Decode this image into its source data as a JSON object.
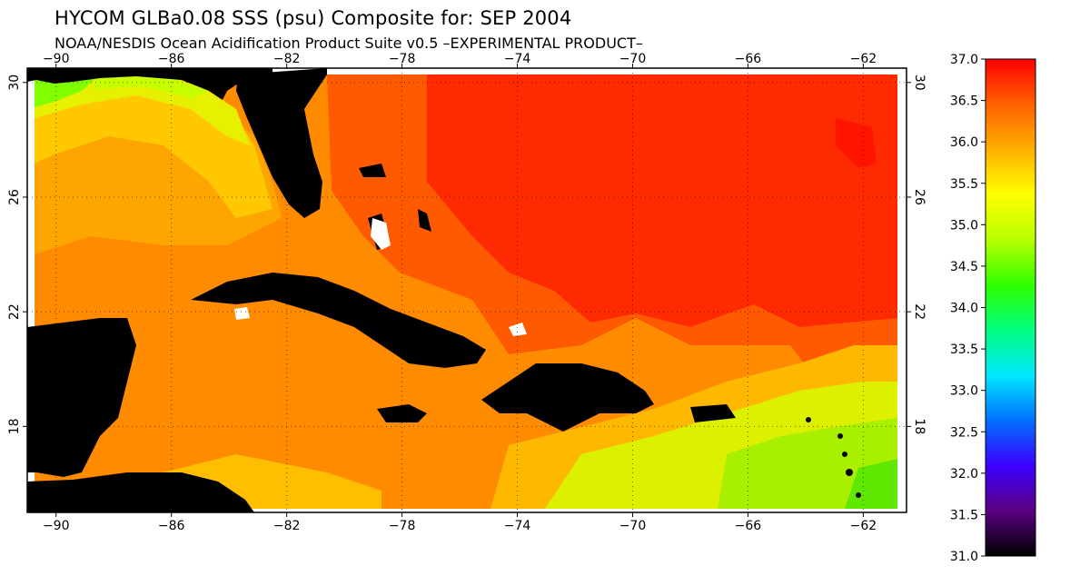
{
  "header": {
    "title": "HYCOM GLBa0.08 SSS (psu) Composite for: SEP 2004",
    "subtitle": "NOAA/NESDIS Ocean Acidification Product Suite  v0.5 –EXPERIMENTAL PRODUCT–"
  },
  "map": {
    "lon_range": [
      -91,
      -60.5
    ],
    "lat_range": [
      15,
      30.5
    ],
    "lon_ticks": [
      -90,
      -86,
      -82,
      -78,
      -74,
      -70,
      -66,
      -62
    ],
    "lon_tick_labels": [
      "−90",
      "−86",
      "−82",
      "−78",
      "−74",
      "−70",
      "−66",
      "−62"
    ],
    "lat_ticks": [
      30,
      26,
      22,
      18
    ],
    "lat_tick_labels": [
      "30",
      "26",
      "22",
      "18"
    ],
    "grid": true,
    "land_color": "#000000"
  },
  "colorbar": {
    "min": 31.0,
    "max": 37.0,
    "ticks": [
      37.0,
      36.5,
      36.0,
      35.5,
      35.0,
      34.5,
      34.0,
      33.5,
      33.0,
      32.5,
      32.0,
      31.5,
      31.0
    ],
    "tick_labels": [
      "37.0",
      "36.5",
      "36.0",
      "35.5",
      "35.0",
      "34.5",
      "34.0",
      "33.5",
      "33.0",
      "32.5",
      "32.0",
      "31.5",
      "31.0"
    ],
    "colormap": [
      "#000000",
      "#5a0080",
      "#3c00ff",
      "#0070ff",
      "#00e8ff",
      "#00ff80",
      "#30ff00",
      "#b8ff00",
      "#ffff00",
      "#ffb000",
      "#ff6000",
      "#ff0000"
    ]
  }
}
